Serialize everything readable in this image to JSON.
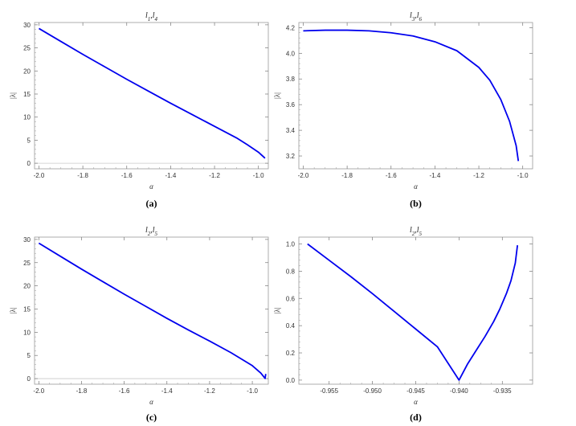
{
  "chart_data": [
    {
      "type": "line",
      "title": "l1,l4",
      "title_parts": [
        {
          "t": "l",
          "sub": "1"
        },
        {
          "t": ",l",
          "sub": "4"
        }
      ],
      "xlabel": "α",
      "ylabel": "|λ|",
      "caption": "(a)",
      "xlim": [
        -2.02,
        -0.955
      ],
      "ylim": [
        -1.2,
        30.5
      ],
      "xticks": [
        -2.0,
        -1.8,
        -1.6,
        -1.4,
        -1.2,
        -1.0
      ],
      "xtick_labels": [
        "-2.0",
        "-1.8",
        "-1.6",
        "-1.4",
        "-1.2",
        "-1.0"
      ],
      "yticks": [
        0,
        5,
        10,
        15,
        20,
        25,
        30
      ],
      "ytick_labels": [
        "0",
        "5",
        "10",
        "15",
        "20",
        "25",
        "30"
      ],
      "zero_line": true,
      "color": "#0000ee",
      "x": [
        -2.0,
        -1.9,
        -1.8,
        -1.7,
        -1.6,
        -1.5,
        -1.4,
        -1.3,
        -1.2,
        -1.1,
        -1.05,
        -1.0,
        -0.97
      ],
      "y": [
        29.2,
        26.4,
        23.6,
        20.9,
        18.2,
        15.6,
        13.0,
        10.5,
        8.0,
        5.5,
        4.0,
        2.4,
        1.1
      ]
    },
    {
      "type": "line",
      "title": "l3,l6",
      "title_parts": [
        {
          "t": "l",
          "sub": "3"
        },
        {
          "t": ",l",
          "sub": "6"
        }
      ],
      "xlabel": "α",
      "ylabel": "|λ|",
      "caption": "(b)",
      "xlim": [
        -2.02,
        -0.955
      ],
      "ylim": [
        3.1,
        4.24
      ],
      "xticks": [
        -2.0,
        -1.8,
        -1.6,
        -1.4,
        -1.2,
        -1.0
      ],
      "xtick_labels": [
        "-2.0",
        "-1.8",
        "-1.6",
        "-1.4",
        "-1.2",
        "-1.0"
      ],
      "yticks": [
        3.2,
        3.4,
        3.6,
        3.8,
        4.0,
        4.2
      ],
      "ytick_labels": [
        "3.2",
        "3.4",
        "3.6",
        "3.8",
        "4.0",
        "4.2"
      ],
      "zero_line": false,
      "color": "#0000ee",
      "x": [
        -2.0,
        -1.9,
        -1.8,
        -1.7,
        -1.6,
        -1.5,
        -1.4,
        -1.3,
        -1.2,
        -1.15,
        -1.1,
        -1.06,
        -1.03,
        -1.02
      ],
      "y": [
        4.175,
        4.18,
        4.18,
        4.175,
        4.16,
        4.135,
        4.09,
        4.02,
        3.89,
        3.79,
        3.64,
        3.47,
        3.28,
        3.16
      ]
    },
    {
      "type": "line",
      "title": "l2,l5",
      "title_parts": [
        {
          "t": "l",
          "sub": "2"
        },
        {
          "t": ",l",
          "sub": "5"
        }
      ],
      "xlabel": "α",
      "ylabel": "|λ|",
      "caption": "(c)",
      "xlim": [
        -2.02,
        -0.925
      ],
      "ylim": [
        -1.2,
        30.5
      ],
      "xticks": [
        -2.0,
        -1.8,
        -1.6,
        -1.4,
        -1.2,
        -1.0
      ],
      "xtick_labels": [
        "-2.0",
        "-1.8",
        "-1.6",
        "-1.4",
        "-1.2",
        "-1.0"
      ],
      "yticks": [
        0,
        5,
        10,
        15,
        20,
        25,
        30
      ],
      "ytick_labels": [
        "0",
        "5",
        "10",
        "15",
        "20",
        "25",
        "30"
      ],
      "zero_line": true,
      "color": "#0000ee",
      "x": [
        -2.0,
        -1.9,
        -1.8,
        -1.7,
        -1.6,
        -1.5,
        -1.4,
        -1.3,
        -1.2,
        -1.1,
        -1.0,
        -0.96,
        -0.94,
        -0.937
      ],
      "y": [
        29.2,
        26.4,
        23.6,
        20.9,
        18.2,
        15.6,
        13.0,
        10.5,
        8.1,
        5.6,
        2.8,
        1.2,
        0.05,
        1.0
      ]
    },
    {
      "type": "line",
      "title": "l2,l5",
      "title_parts": [
        {
          "t": "l",
          "sub": "2"
        },
        {
          "t": ",l",
          "sub": "5"
        }
      ],
      "xlabel": "α",
      "ylabel": "|λ|",
      "caption": "(d)",
      "xlim": [
        -0.9585,
        -0.9315
      ],
      "ylim": [
        -0.03,
        1.05
      ],
      "xticks": [
        -0.955,
        -0.95,
        -0.945,
        -0.94,
        -0.935
      ],
      "xtick_labels": [
        "-0.955",
        "-0.950",
        "-0.945",
        "-0.940",
        "-0.935"
      ],
      "yticks": [
        0.0,
        0.2,
        0.4,
        0.6,
        0.8,
        1.0
      ],
      "ytick_labels": [
        "0.0",
        "0.2",
        "0.4",
        "0.6",
        "0.8",
        "1.0"
      ],
      "zero_line": false,
      "color": "#0000ee",
      "x": [
        -0.9575,
        -0.955,
        -0.9525,
        -0.95,
        -0.9475,
        -0.945,
        -0.9425,
        -0.94,
        -0.939,
        -0.938,
        -0.937,
        -0.936,
        -0.9353,
        -0.9345,
        -0.934,
        -0.9335,
        -0.93325
      ],
      "y": [
        1.0,
        0.88,
        0.76,
        0.635,
        0.505,
        0.375,
        0.245,
        0.0,
        0.12,
        0.22,
        0.32,
        0.43,
        0.52,
        0.64,
        0.73,
        0.86,
        0.99
      ]
    }
  ]
}
